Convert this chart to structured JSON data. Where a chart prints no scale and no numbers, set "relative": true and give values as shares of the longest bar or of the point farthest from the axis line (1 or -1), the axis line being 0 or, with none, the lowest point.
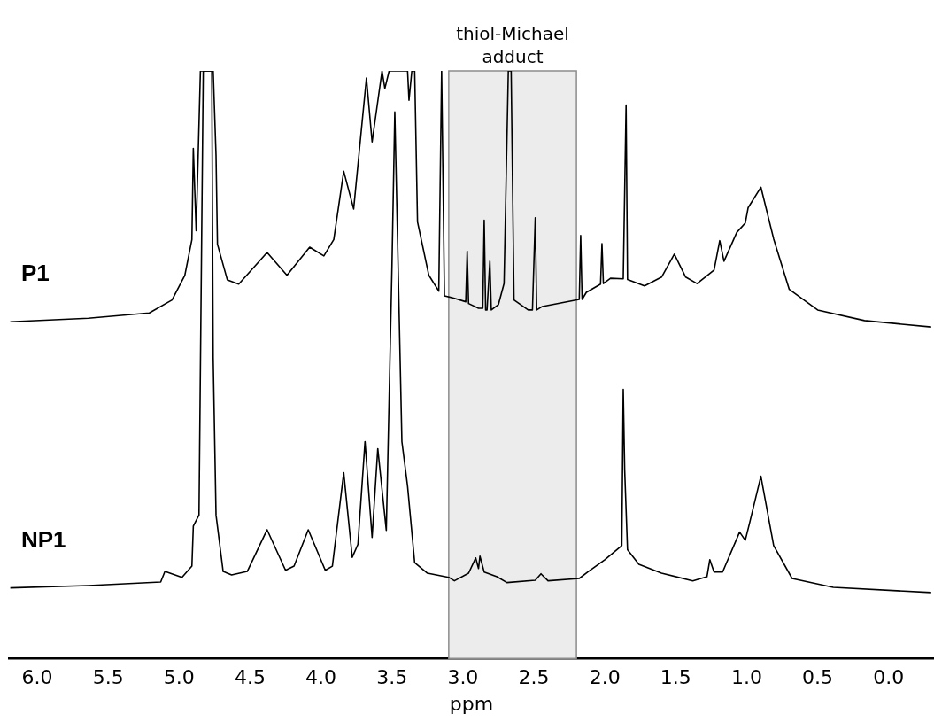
{
  "chart_data": {
    "type": "line",
    "relative": true,
    "xlabel": "ppm",
    "tick_labels": "x",
    "legend": false,
    "marker": "none",
    "line_style": "solid",
    "xlim": [
      6.2,
      -0.32
    ],
    "xticks": [
      {
        "value": 6,
        "label": "6.0"
      },
      {
        "value": 5.5,
        "label": "5.5"
      },
      {
        "value": 5,
        "label": "5.0"
      },
      {
        "value": 4.5,
        "label": "4.5"
      },
      {
        "value": 4,
        "label": "4.0"
      },
      {
        "value": 3.5,
        "label": "3.5"
      },
      {
        "value": 3,
        "label": "3.0"
      },
      {
        "value": 2.5,
        "label": "2.5"
      },
      {
        "value": 2,
        "label": "2.0"
      },
      {
        "value": 1.5,
        "label": "1.5"
      },
      {
        "value": 1,
        "label": "1.0"
      },
      {
        "value": 0.5,
        "label": "0.5"
      },
      {
        "value": 0,
        "label": "0.0"
      }
    ],
    "bands": [
      {
        "axis": "x",
        "from": 3.1,
        "to": 2.2,
        "label": "thiol-Michael adduct",
        "color": "#ececec"
      }
    ],
    "series": [
      {
        "name": "P1",
        "color": "#000000",
        "x": [
          6.19,
          5.64,
          5.21,
          5.05,
          4.96,
          4.91,
          4.9,
          4.88,
          4.85,
          4.76,
          4.74,
          4.73,
          4.66,
          4.58,
          4.38,
          4.24,
          4.08,
          3.98,
          3.91,
          3.84,
          3.77,
          3.68,
          3.64,
          3.57,
          3.55,
          3.52,
          3.39,
          3.38,
          3.36,
          3.34,
          3.32,
          3.24,
          3.17,
          3.15,
          3.13,
          3.06,
          2.98,
          2.97,
          2.96,
          2.89,
          2.86,
          2.85,
          2.84,
          2.83,
          2.81,
          2.8,
          2.75,
          2.71,
          2.68,
          2.66,
          2.64,
          2.54,
          2.51,
          2.49,
          2.48,
          2.44,
          2.18,
          2.17,
          2.16,
          2.13,
          2.03,
          2.02,
          2.01,
          1.96,
          1.87,
          1.85,
          1.84,
          1.72,
          1.6,
          1.51,
          1.43,
          1.35,
          1.23,
          1.19,
          1.16,
          1.07,
          1.01,
          0.99,
          0.9,
          0.81,
          0.7,
          0.5,
          0.17,
          -0.3
        ],
        "values": [
          0.573,
          0.579,
          0.588,
          0.61,
          0.652,
          0.713,
          0.868,
          0.728,
          1.0,
          1.0,
          0.856,
          0.705,
          0.644,
          0.637,
          0.691,
          0.652,
          0.7,
          0.685,
          0.713,
          0.829,
          0.765,
          0.988,
          0.879,
          1.0,
          0.97,
          1.0,
          1.0,
          0.95,
          1.0,
          1.0,
          0.743,
          0.652,
          0.625,
          1.0,
          0.617,
          0.613,
          0.607,
          0.693,
          0.604,
          0.596,
          0.596,
          0.746,
          0.593,
          0.593,
          0.676,
          0.593,
          0.602,
          0.638,
          1.0,
          1.0,
          0.61,
          0.593,
          0.593,
          0.75,
          0.593,
          0.599,
          0.611,
          0.72,
          0.611,
          0.623,
          0.637,
          0.706,
          0.638,
          0.647,
          0.646,
          0.942,
          0.645,
          0.634,
          0.649,
          0.688,
          0.649,
          0.638,
          0.661,
          0.711,
          0.676,
          0.725,
          0.741,
          0.767,
          0.802,
          0.714,
          0.628,
          0.593,
          0.575,
          0.564
        ]
      },
      {
        "name": "NP1",
        "color": "#000000",
        "x": [
          6.19,
          5.64,
          5.13,
          5.1,
          4.98,
          4.91,
          4.9,
          4.86,
          4.83,
          4.77,
          4.76,
          4.74,
          4.69,
          4.63,
          4.52,
          4.38,
          4.25,
          4.19,
          4.09,
          3.97,
          3.92,
          3.84,
          3.78,
          3.74,
          3.69,
          3.64,
          3.6,
          3.54,
          3.5,
          3.48,
          3.43,
          3.39,
          3.34,
          3.25,
          3.1,
          3.06,
          2.96,
          2.91,
          2.89,
          2.88,
          2.85,
          2.76,
          2.69,
          2.49,
          2.45,
          2.4,
          2.18,
          2.12,
          2.0,
          1.88,
          1.87,
          1.86,
          1.84,
          1.76,
          1.6,
          1.38,
          1.28,
          1.26,
          1.23,
          1.17,
          1.05,
          1.01,
          0.98,
          0.9,
          0.81,
          0.68,
          0.39,
          -0.3
        ],
        "values": [
          0.12,
          0.124,
          0.13,
          0.148,
          0.138,
          0.157,
          0.225,
          0.244,
          1.0,
          1.0,
          0.511,
          0.244,
          0.148,
          0.142,
          0.148,
          0.219,
          0.15,
          0.157,
          0.219,
          0.15,
          0.157,
          0.316,
          0.172,
          0.194,
          0.369,
          0.206,
          0.357,
          0.218,
          0.667,
          0.93,
          0.369,
          0.293,
          0.163,
          0.145,
          0.138,
          0.132,
          0.145,
          0.171,
          0.153,
          0.174,
          0.147,
          0.139,
          0.129,
          0.133,
          0.144,
          0.132,
          0.136,
          0.147,
          0.168,
          0.192,
          0.458,
          0.321,
          0.185,
          0.16,
          0.145,
          0.132,
          0.139,
          0.168,
          0.147,
          0.147,
          0.215,
          0.201,
          0.23,
          0.31,
          0.192,
          0.136,
          0.121,
          0.112
        ]
      }
    ]
  }
}
